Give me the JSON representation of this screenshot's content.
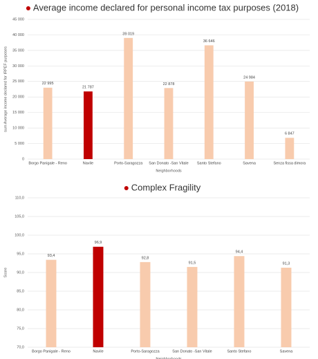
{
  "chart_data": [
    {
      "type": "bar",
      "title": "Average income declared for personal income tax purposes (2018)",
      "y_label": "sum Average income declared for IRPEF purposes",
      "x_label": "Neighborhoods",
      "categories": [
        "Borgo Panigale - Reno",
        "Navile",
        "Porto-Saragozza",
        "San Donato -San Vitale",
        "Santo Stefano",
        "Savena",
        "Senza fissa dimora"
      ],
      "values": [
        22995,
        21787,
        39019,
        22878,
        36646,
        24984,
        6847
      ],
      "value_labels": [
        "22 995",
        "21 787",
        "39 019",
        "22 878",
        "36 646",
        "24 984",
        "6 847"
      ],
      "colors": [
        "#f8cbad",
        "#c00000",
        "#f8cbad",
        "#f8cbad",
        "#f8cbad",
        "#f8cbad",
        "#f8cbad"
      ],
      "ylim": [
        0,
        45000
      ],
      "yticks": [
        0,
        {
          "value": 5000,
          "label": "5 000"
        },
        {
          "value": 10000,
          "label": "10 000"
        },
        {
          "value": 15000,
          "label": "15 000"
        },
        {
          "value": 20000,
          "label": "20 000"
        },
        {
          "value": 25000,
          "label": "25 000"
        },
        {
          "value": 30000,
          "label": "30 000"
        },
        {
          "value": 35000,
          "label": "35 000"
        },
        {
          "value": 40000,
          "label": "40 000"
        },
        {
          "value": 45000,
          "label": "45 000"
        }
      ],
      "grid": true
    },
    {
      "type": "bar",
      "title": "Complex Fragility",
      "y_label": "Score",
      "x_label": "Neighborhoods",
      "categories": [
        "Borgo Panigale - Reno",
        "Navile",
        "Porto-Saragozza",
        "San Donato -San Vitale",
        "Santo Stefano",
        "Savena"
      ],
      "values": [
        93.4,
        96.9,
        92.8,
        91.5,
        94.4,
        91.3
      ],
      "value_labels": [
        "93,4",
        "96,9",
        "92,8",
        "91,5",
        "94,4",
        "91,3"
      ],
      "colors": [
        "#f8cbad",
        "#c00000",
        "#f8cbad",
        "#f8cbad",
        "#f8cbad",
        "#f8cbad"
      ],
      "ylim": [
        70,
        110
      ],
      "yticks": [
        {
          "value": 70,
          "label": "70,0"
        },
        {
          "value": 75,
          "label": "75,0"
        },
        {
          "value": 80,
          "label": "80,0"
        },
        {
          "value": 85,
          "label": "85,0"
        },
        {
          "value": 90,
          "label": "90,0"
        },
        {
          "value": 95,
          "label": "95,0"
        },
        {
          "value": 100,
          "label": "100,0"
        },
        {
          "value": 105,
          "label": "105,0"
        },
        {
          "value": 110,
          "label": "110,0"
        }
      ],
      "grid": true
    }
  ]
}
